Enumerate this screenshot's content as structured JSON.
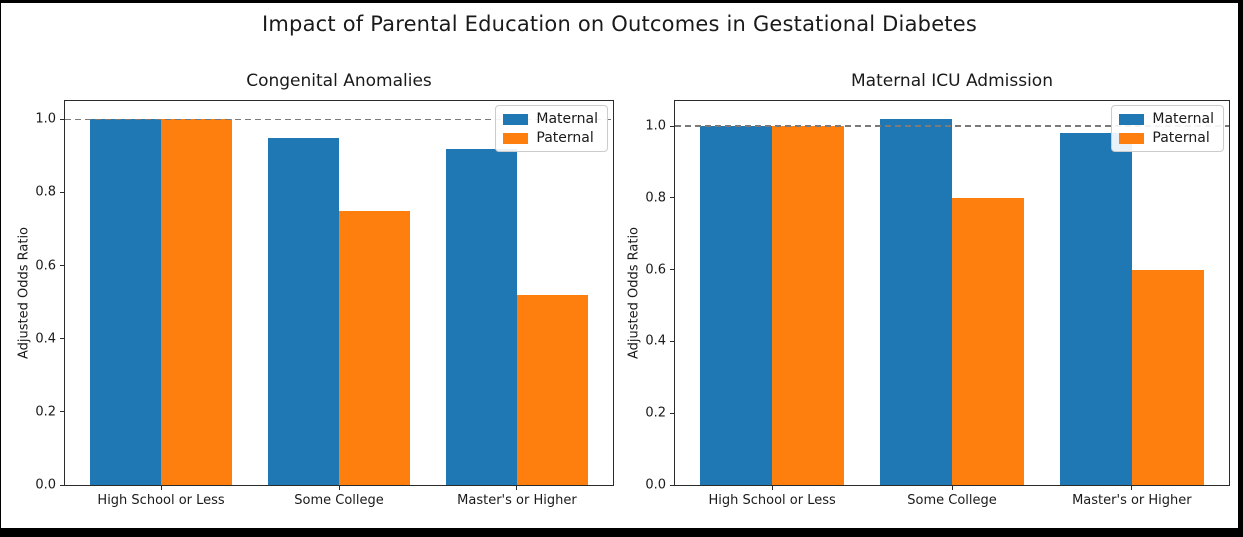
{
  "figure": {
    "title": "Impact of Parental Education on Outcomes in Gestational Diabetes",
    "background_color": "#ffffff",
    "frame_color": "#000000"
  },
  "colors": {
    "maternal": "#1f77b4",
    "paternal": "#ff7f0e",
    "reference_line": "#7a7a7a",
    "text": "#1a1a1a"
  },
  "chart_data": [
    {
      "type": "bar",
      "title": "Congenital Anomalies",
      "xlabel": "",
      "ylabel": "Adjusted Odds Ratio",
      "categories": [
        "High School or Less",
        "Some College",
        "Master's or Higher"
      ],
      "series": [
        {
          "name": "Maternal",
          "color": "#1f77b4",
          "values": [
            1.0,
            0.95,
            0.92
          ]
        },
        {
          "name": "Paternal",
          "color": "#ff7f0e",
          "values": [
            1.0,
            0.75,
            0.52
          ]
        }
      ],
      "yticks": [
        0.0,
        0.2,
        0.4,
        0.6,
        0.8,
        1.0
      ],
      "ylim": [
        0,
        1.05
      ],
      "reference_line_y": 1.0,
      "grid": false,
      "legend_position": "upper right"
    },
    {
      "type": "bar",
      "title": "Maternal ICU Admission",
      "xlabel": "",
      "ylabel": "Adjusted Odds Ratio",
      "categories": [
        "High School or Less",
        "Some College",
        "Master's or Higher"
      ],
      "series": [
        {
          "name": "Maternal",
          "color": "#1f77b4",
          "values": [
            1.0,
            1.02,
            0.98
          ]
        },
        {
          "name": "Paternal",
          "color": "#ff7f0e",
          "values": [
            1.0,
            0.8,
            0.6
          ]
        }
      ],
      "yticks": [
        0.0,
        0.2,
        0.4,
        0.6,
        0.8,
        1.0
      ],
      "ylim": [
        0,
        1.07
      ],
      "reference_line_y": 1.0,
      "grid": false,
      "legend_position": "upper right"
    }
  ]
}
